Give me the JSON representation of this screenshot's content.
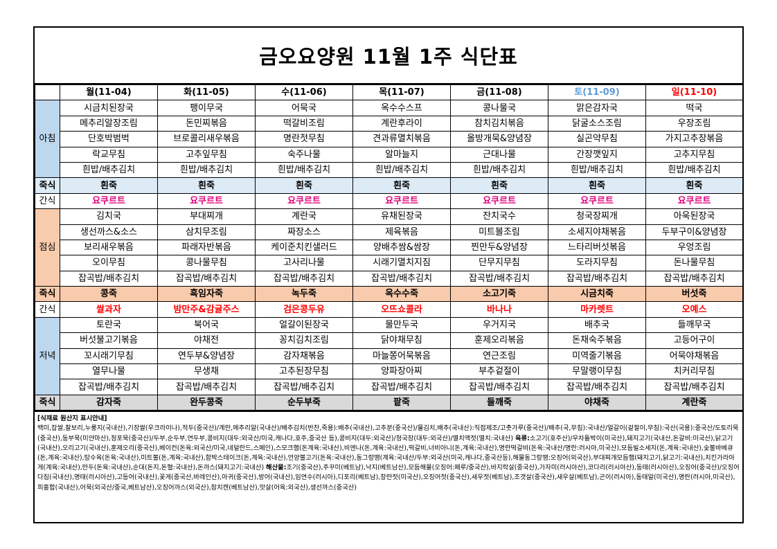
{
  "title": "금오요양원 11월 1주 식단표",
  "days": [
    {
      "label": "월(11-04)",
      "type": "weekday"
    },
    {
      "label": "화(11-05)",
      "type": "weekday"
    },
    {
      "label": "수(11-06)",
      "type": "weekday"
    },
    {
      "label": "목(11-07)",
      "type": "weekday"
    },
    {
      "label": "금(11-08)",
      "type": "weekday"
    },
    {
      "label": "토(11-09)",
      "type": "saturday"
    },
    {
      "label": "일(11-10)",
      "type": "sunday"
    }
  ],
  "categories": {
    "breakfast": "아침",
    "porridge": "죽식",
    "snack": "간식",
    "lunch": "점심",
    "dinner": "저녁"
  },
  "breakfast": [
    [
      "시금치된장국",
      "팽이무국",
      "어묵국",
      "옥수수스프",
      "콩나물국",
      "맑은감자국",
      "떡국"
    ],
    [
      "메추리알장조림",
      "돈민찌볶음",
      "떡갈비조림",
      "계란후라이",
      "참치김치볶음",
      "닭굴소스조림",
      "우장조림"
    ],
    [
      "단호박범벅",
      "브로콜리새우볶음",
      "명란젓무침",
      "견과류멸치볶음",
      "올방개묵&양념장",
      "실곤약무침",
      "가지고추장볶음"
    ],
    [
      "락교무침",
      "고추잎무침",
      "숙주나물",
      "알마늘지",
      "근대나물",
      "간장깻잎지",
      "고추지무침"
    ],
    [
      "흰밥/배추김치",
      "흰밥/배추김치",
      "흰밥/배추김치",
      "흰밥/배추김치",
      "흰밥/배추김치",
      "흰밥/배추김치",
      "흰밥/배추김치"
    ]
  ],
  "breakfast_porridge": [
    "흰죽",
    "흰죽",
    "흰죽",
    "흰죽",
    "흰죽",
    "흰죽",
    "흰죽"
  ],
  "morning_snack": [
    "요쿠르트",
    "요쿠르트",
    "요쿠르트",
    "요쿠르트",
    "요쿠르트",
    "요쿠르트",
    "요쿠르트"
  ],
  "lunch": [
    [
      "김치국",
      "부대찌개",
      "계란국",
      "유채된장국",
      "잔치국수",
      "청국장찌개",
      "아욱된장국"
    ],
    [
      "생선까스&소스",
      "삼치무조림",
      "짜장소스",
      "제육볶음",
      "미트볼조림",
      "소세지야채볶음",
      "두부구이&양념장"
    ],
    [
      "보리새우볶음",
      "파래자반볶음",
      "케이준치킨샐러드",
      "양배추쌈&쌈장",
      "찐만두&양념장",
      "느타리버섯볶음",
      "우엉조림"
    ],
    [
      "오이무침",
      "콩나물무침",
      "고사리나물",
      "시래기멸치지짐",
      "단무지무침",
      "도라지무침",
      "돈나물무침"
    ],
    [
      "잡곡밥/배추김치",
      "잡곡밥/배추김치",
      "잡곡밥/배추김치",
      "잡곡밥/배추김치",
      "잡곡밥/배추김치",
      "잡곡밥/배추김치",
      "잡곡밥/배추김치"
    ]
  ],
  "lunch_porridge": [
    "콩죽",
    "흑임자죽",
    "녹두죽",
    "옥수수죽",
    "소고기죽",
    "시금치죽",
    "버섯죽"
  ],
  "afternoon_snack": [
    "쌀과자",
    "밤만주&감귤주스",
    "검은콩두유",
    "오뜨쇼콜라",
    "바나나",
    "마카렛트",
    "오예스"
  ],
  "dinner": [
    [
      "토란국",
      "북어국",
      "얼갈이된장국",
      "물만두국",
      "우거지국",
      "배추국",
      "들깨무국"
    ],
    [
      "버섯불고기볶음",
      "야채전",
      "꽁치김치조림",
      "닭야채무침",
      "훈제오리볶음",
      "돈채숙주볶음",
      "고등어구이"
    ],
    [
      "꼬시래기무침",
      "연두부&양념장",
      "감자채볶음",
      "마늘쫑어묵볶음",
      "연근조림",
      "미역줄기볶음",
      "어묵야채볶음"
    ],
    [
      "열무나물",
      "무생채",
      "고추된장무침",
      "양파장아찌",
      "부추겉절이",
      "무말랭이무침",
      "치커리무침"
    ],
    [
      "잡곡밥/배추김치",
      "잡곡밥/배추김치",
      "잡곡밥/배추김치",
      "잡곡밥/배추김치",
      "잡곡밥/배추김치",
      "잡곡밥/배추김치",
      "잡곡밥/배추김치"
    ]
  ],
  "dinner_porridge": [
    "감자죽",
    "완두콩죽",
    "순두부죽",
    "팥죽",
    "들깨죽",
    "야채죽",
    "계란죽"
  ],
  "origin": {
    "title": "[식재료 원산지 표시안내]",
    "grain_and_misc": "백미,찹쌀,찰보리,누룽지(국내산),기장쌀(우크라이나),적두(중국산)/계란,메추리알(국내산)/배추김치(반찬,죽용):배추(국내산),고추분(중국산)/물김치,배추(국내산):직접제조/고춧가루(중국산)/배추(국,무침):국내산/얼갈이(겉절이,무침):국산(국용):중국산/도토리묵(중국산),동부묵(미얀마산),청포묵(중국산)/두부,순두부,연두부,콩비지(대두:외국산/미국,캐나다,호주,중국산 등),콩비지(대두:외국산)/청국장(대두:외국산)/멸치액젓(멸치:국내산)",
    "meat_label": "육류:",
    "meat": "소고기(호주산)/우차돌박이(미국산),돼지고기(국내산,돈갈비:미국산),닭고기(국내산),오리고기(국내산),훈제오리(중국산),베이컨(돈육:외국산/미국,네덜란드,스페인),스모크햄(돈계육:국내산),비엔나(돈,계육:국내산),떡갈비,너비아니(돈,계육:국내산),명란떡갈비(돈육:국내산/명란:러시아,미국산),모듬빌소세지(돈,계육:국내산),숯불바베큐(돈,계육:국내산),탕수육(돈육:국내산),미트볼(돈,계육:국내산),함박스테이크(돈,계육:국내산),언양불고기(돈육:국내산),동그랑땡(계육:국내산/두부:외국산(미국,캐나다,중국산등),해물동그랑땡:오징어(외국산),부대찌개모듬햄(돼지고기,닭고기:국내산),치킨가라아게(계육:국내산),만두(돈육:국내산),순대(돈지,돈혈:국내산),돈까스(돼지고기:국내산)",
    "seafood_label": "해산물:",
    "seafood": "조기(중국산),주꾸미(베트남),낙지(베트남산),모듬해물(오징어:페루/중국산),바지락살(중국산),가자미(러시아산),코다리(러시아산),동태(러시아산),오징어(중국산)/오징어다짐(국내산),명태(러시아산),고등어(국내산),꽃게(중국산,바레인산),아귀(중국산),방어(국내산),임연수(러시아),디포리(베트남),창란젓(미국산),오징어젓(중국산),새우젓(베트남),조갯살(중국산),새우살(베트남),곤이(러시아),동태알(미국산),명란(러시아,미국산),피홍합(국내산),어묵(외국산/중국,베트남산),오징어까스(외국산),참치캔(베트남산),맛살(어육:외국산),생선까스(중국산)"
  }
}
